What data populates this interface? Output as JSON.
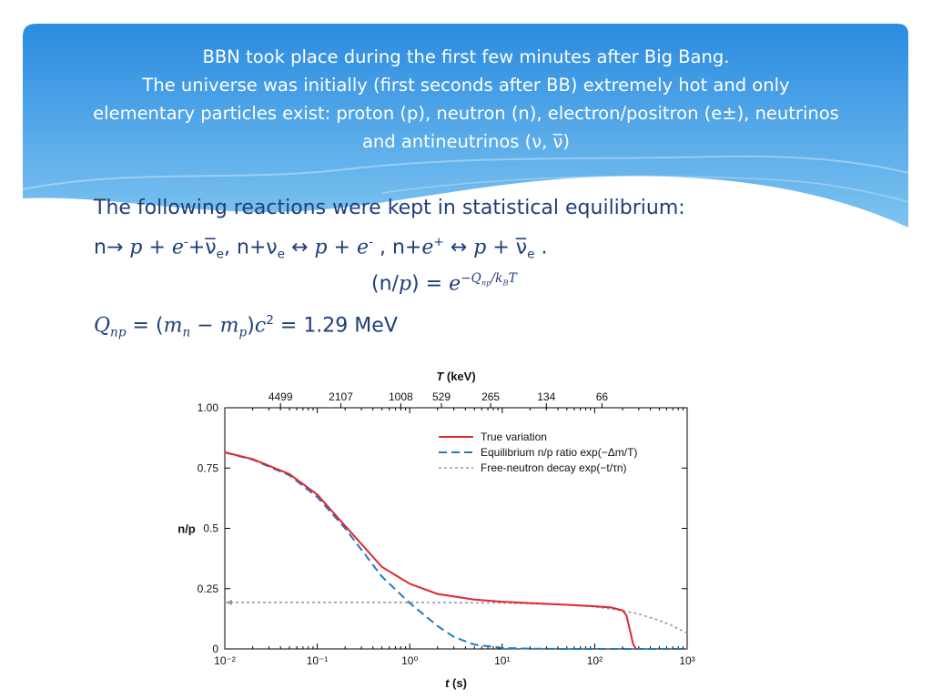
{
  "colors": {
    "banner_top": "#2a8be0",
    "banner_bottom": "#7ec4f0",
    "body_text": "#1f3e7a",
    "true_variation": "#e0262b",
    "equilibrium": "#1f7bc1",
    "free_decay": "#9a9a9a"
  },
  "header": {
    "line1": "BBN took place during the first few minutes after Big Bang.",
    "line2": "The universe was initially (first seconds after BB) extremely hot and only",
    "line3": "elementary particles exist: proton (p), neutron (n), electron/positron (e±), neutrinos",
    "line4": "and antineutrinos (ν,  ν̅)"
  },
  "body": {
    "intro": "The following reactions were kept in statistical equilibrium:",
    "reactions": {
      "r1_n": "n→",
      "r1_p": "p",
      "plus": "+",
      "r1_e": "e",
      "minus_sup": "-",
      "plus_small": "+",
      "nubar": "ν̅",
      "sub_e": "e",
      "sep": ",",
      "r2_n": "n+ν",
      "arrow": "↔",
      "r3_n": "n+",
      "plus_sup": "+",
      "end": "."
    },
    "ratio": {
      "lhs_open": "(n/",
      "lhs_p": "p",
      "lhs_close": ")",
      "eq": "=",
      "e": "e",
      "exponent": "−Q",
      "exp_np": "np",
      "exp_slash": "/k",
      "exp_B": "B",
      "exp_T": "T"
    },
    "q": {
      "Q": "Q",
      "np": "np",
      "eq": "=",
      "open": "(",
      "m": "m",
      "n": "n",
      "minus": "−",
      "p": "p",
      "close": ")",
      "c": "c",
      "sq": "2",
      "value": "1.29",
      "unit": "MeV"
    }
  },
  "chart_data": {
    "type": "line",
    "title": "",
    "xlabel": "t (s)",
    "ylabel": "n/p",
    "x_scale": "log",
    "xlim": [
      0.01,
      1000
    ],
    "ylim": [
      0,
      1.0
    ],
    "x_ticks": [
      "10⁻²",
      "10⁻¹",
      "10⁰",
      "10¹",
      "10²",
      "10³"
    ],
    "y_ticks": [
      "0",
      "0.25",
      "0.5",
      "0.75",
      "1.00"
    ],
    "top_axis": {
      "label": "T (keV)",
      "ticks": [
        {
          "t": 0.04,
          "label": "4499"
        },
        {
          "t": 0.18,
          "label": "2107"
        },
        {
          "t": 0.8,
          "label": "1008"
        },
        {
          "t": 2.2,
          "label": "529"
        },
        {
          "t": 7.5,
          "label": "265"
        },
        {
          "t": 30,
          "label": "134"
        },
        {
          "t": 120,
          "label": "66"
        }
      ]
    },
    "legend": "top-right",
    "series": [
      {
        "name": "True variation",
        "style": "solid",
        "color": "#e0262b",
        "x": [
          0.01,
          0.02,
          0.05,
          0.1,
          0.2,
          0.5,
          1,
          2,
          5,
          10,
          20,
          50,
          100,
          150,
          200,
          220,
          240,
          260,
          280
        ],
        "y": [
          0.815,
          0.787,
          0.725,
          0.64,
          0.51,
          0.34,
          0.27,
          0.228,
          0.205,
          0.196,
          0.19,
          0.183,
          0.177,
          0.172,
          0.16,
          0.14,
          0.08,
          0.02,
          0.0
        ]
      },
      {
        "name": "Equilibrium n/p ratio exp(−Δm/T)",
        "style": "dashed",
        "color": "#1f7bc1",
        "x": [
          0.01,
          0.02,
          0.05,
          0.1,
          0.2,
          0.5,
          1,
          2,
          3,
          5,
          10,
          20,
          50,
          100,
          1000
        ],
        "y": [
          0.815,
          0.785,
          0.72,
          0.63,
          0.5,
          0.3,
          0.19,
          0.095,
          0.05,
          0.018,
          0.004,
          0.001,
          0.0,
          0.0,
          0.0
        ]
      },
      {
        "name": "Free-neutron decay exp(−t/τn)",
        "style": "dotted",
        "color": "#9a9a9a",
        "x": [
          0.01,
          1,
          10,
          50,
          100,
          200,
          300,
          500,
          700,
          1000
        ],
        "y": [
          0.193,
          0.193,
          0.191,
          0.183,
          0.175,
          0.159,
          0.145,
          0.118,
          0.095,
          0.065
        ]
      }
    ]
  }
}
